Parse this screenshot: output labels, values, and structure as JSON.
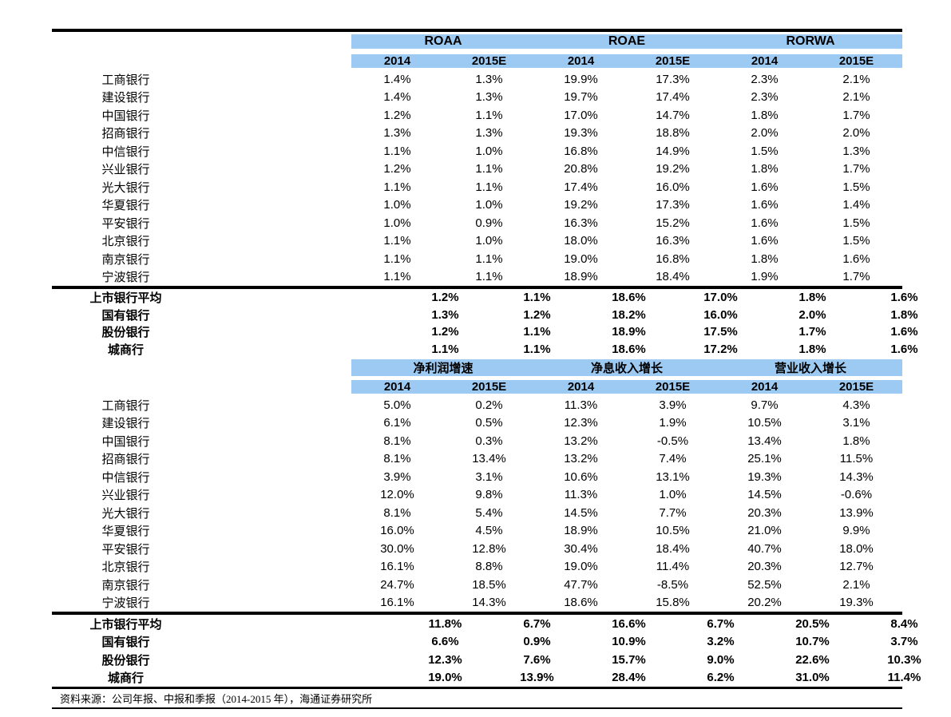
{
  "palette": {
    "header_band": "#9DCAF2",
    "text": "#000000",
    "background": "#FFFFFF",
    "rule": "#000000"
  },
  "footer": {
    "source_text": "资料来源：公司年报、中报和季报（2014-2015 年），海通证券研究所"
  },
  "chart_data": [
    {
      "type": "table",
      "title": "",
      "column_groups": [
        "ROAA",
        "ROAE",
        "RORWA"
      ],
      "sub_columns": [
        "2014",
        "2015E",
        "2014",
        "2015E",
        "2014",
        "2015E"
      ],
      "rows": [
        {
          "label": "工商银行",
          "values": [
            "1.4%",
            "1.3%",
            "19.9%",
            "17.3%",
            "2.3%",
            "2.1%"
          ]
        },
        {
          "label": "建设银行",
          "values": [
            "1.4%",
            "1.3%",
            "19.7%",
            "17.4%",
            "2.3%",
            "2.1%"
          ]
        },
        {
          "label": "中国银行",
          "values": [
            "1.2%",
            "1.1%",
            "17.0%",
            "14.7%",
            "1.8%",
            "1.7%"
          ]
        },
        {
          "label": "招商银行",
          "values": [
            "1.3%",
            "1.3%",
            "19.3%",
            "18.8%",
            "2.0%",
            "2.0%"
          ]
        },
        {
          "label": "中信银行",
          "values": [
            "1.1%",
            "1.0%",
            "16.8%",
            "14.9%",
            "1.5%",
            "1.3%"
          ]
        },
        {
          "label": "兴业银行",
          "values": [
            "1.2%",
            "1.1%",
            "20.8%",
            "19.2%",
            "1.8%",
            "1.7%"
          ]
        },
        {
          "label": "光大银行",
          "values": [
            "1.1%",
            "1.1%",
            "17.4%",
            "16.0%",
            "1.6%",
            "1.5%"
          ]
        },
        {
          "label": "华夏银行",
          "values": [
            "1.0%",
            "1.0%",
            "19.2%",
            "17.3%",
            "1.6%",
            "1.4%"
          ]
        },
        {
          "label": "平安银行",
          "values": [
            "1.0%",
            "0.9%",
            "16.3%",
            "15.2%",
            "1.6%",
            "1.5%"
          ]
        },
        {
          "label": "北京银行",
          "values": [
            "1.1%",
            "1.0%",
            "18.0%",
            "16.3%",
            "1.6%",
            "1.5%"
          ]
        },
        {
          "label": "南京银行",
          "values": [
            "1.1%",
            "1.1%",
            "19.0%",
            "16.8%",
            "1.8%",
            "1.6%"
          ]
        },
        {
          "label": "宁波银行",
          "values": [
            "1.1%",
            "1.1%",
            "18.9%",
            "18.4%",
            "1.9%",
            "1.7%"
          ]
        }
      ],
      "summary_rows": [
        {
          "label": "上市银行平均",
          "values": [
            "1.2%",
            "1.1%",
            "18.6%",
            "17.0%",
            "1.8%",
            "1.6%"
          ]
        },
        {
          "label": "国有银行",
          "values": [
            "1.3%",
            "1.2%",
            "18.2%",
            "16.0%",
            "2.0%",
            "1.8%"
          ]
        },
        {
          "label": "股份银行",
          "values": [
            "1.2%",
            "1.1%",
            "18.9%",
            "17.5%",
            "1.7%",
            "1.6%"
          ]
        },
        {
          "label": "城商行",
          "values": [
            "1.1%",
            "1.1%",
            "18.6%",
            "17.2%",
            "1.8%",
            "1.6%"
          ]
        }
      ]
    },
    {
      "type": "table",
      "title": "",
      "column_groups": [
        "净利润增速",
        "净息收入增长",
        "营业收入增长"
      ],
      "sub_columns": [
        "2014",
        "2015E",
        "2014",
        "2015E",
        "2014",
        "2015E"
      ],
      "rows": [
        {
          "label": "工商银行",
          "values": [
            "5.0%",
            "0.2%",
            "11.3%",
            "3.9%",
            "9.7%",
            "4.3%"
          ]
        },
        {
          "label": "建设银行",
          "values": [
            "6.1%",
            "0.5%",
            "12.3%",
            "1.9%",
            "10.5%",
            "3.1%"
          ]
        },
        {
          "label": "中国银行",
          "values": [
            "8.1%",
            "0.3%",
            "13.2%",
            "-0.5%",
            "13.4%",
            "1.8%"
          ]
        },
        {
          "label": "招商银行",
          "values": [
            "8.1%",
            "13.4%",
            "13.2%",
            "7.4%",
            "25.1%",
            "11.5%"
          ]
        },
        {
          "label": "中信银行",
          "values": [
            "3.9%",
            "3.1%",
            "10.6%",
            "13.1%",
            "19.3%",
            "14.3%"
          ]
        },
        {
          "label": "兴业银行",
          "values": [
            "12.0%",
            "9.8%",
            "11.3%",
            "1.0%",
            "14.5%",
            "-0.6%"
          ]
        },
        {
          "label": "光大银行",
          "values": [
            "8.1%",
            "5.4%",
            "14.5%",
            "7.7%",
            "20.3%",
            "13.9%"
          ]
        },
        {
          "label": "华夏银行",
          "values": [
            "16.0%",
            "4.5%",
            "18.9%",
            "10.5%",
            "21.0%",
            "9.9%"
          ]
        },
        {
          "label": "平安银行",
          "values": [
            "30.0%",
            "12.8%",
            "30.4%",
            "18.4%",
            "40.7%",
            "18.0%"
          ]
        },
        {
          "label": "北京银行",
          "values": [
            "16.1%",
            "8.8%",
            "19.0%",
            "11.4%",
            "20.3%",
            "12.7%"
          ]
        },
        {
          "label": "南京银行",
          "values": [
            "24.7%",
            "18.5%",
            "47.7%",
            "-8.5%",
            "52.5%",
            "2.1%"
          ]
        },
        {
          "label": "宁波银行",
          "values": [
            "16.1%",
            "14.3%",
            "18.6%",
            "15.8%",
            "20.2%",
            "19.3%"
          ]
        }
      ],
      "summary_rows": [
        {
          "label": "上市银行平均",
          "values": [
            "11.8%",
            "6.7%",
            "16.6%",
            "6.7%",
            "20.5%",
            "8.4%"
          ]
        },
        {
          "label": "国有银行",
          "values": [
            "6.6%",
            "0.9%",
            "10.9%",
            "3.2%",
            "10.7%",
            "3.7%"
          ]
        },
        {
          "label": "股份银行",
          "values": [
            "12.3%",
            "7.6%",
            "15.7%",
            "9.0%",
            "22.6%",
            "10.3%"
          ]
        },
        {
          "label": "城商行",
          "values": [
            "19.0%",
            "13.9%",
            "28.4%",
            "6.2%",
            "31.0%",
            "11.4%"
          ]
        }
      ]
    }
  ]
}
